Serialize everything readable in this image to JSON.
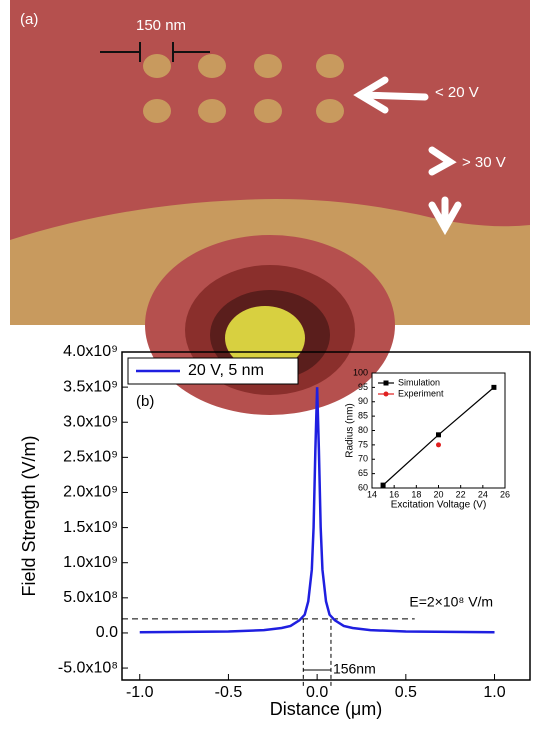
{
  "image_panel": {
    "label": "(a)",
    "annotations": [
      "150 nm",
      "< 20 V",
      "> 30 V"
    ]
  },
  "chart_data": [
    {
      "type": "line",
      "panel_label": "(b)",
      "xlabel": "Distance (μm)",
      "ylabel": "Field Strength (V/m)",
      "x": [
        -1.0,
        -0.5,
        -0.3,
        -0.2,
        -0.15,
        -0.1,
        -0.07,
        -0.05,
        -0.03,
        -0.02,
        -0.01,
        0,
        0.01,
        0.02,
        0.03,
        0.05,
        0.07,
        0.1,
        0.15,
        0.2,
        0.3,
        0.5,
        1.0
      ],
      "series": [
        {
          "name": "20 V, 5 nm",
          "color": "#1f1fe0",
          "values": [
            10000000,
            20000000,
            40000000,
            70000000,
            100000000,
            180000000,
            260000000,
            450000000,
            900000000,
            1500000000,
            2600000000,
            3500000000,
            2600000000,
            1500000000,
            900000000,
            450000000,
            260000000,
            180000000,
            100000000,
            70000000,
            40000000,
            20000000,
            10000000
          ]
        }
      ],
      "xlim": [
        -1.1,
        1.2
      ],
      "ylim": [
        -670000000,
        4000000000
      ],
      "xticks": [
        -1.0,
        -0.5,
        0.0,
        0.5,
        1.0
      ],
      "xtick_labels": [
        "-1.0",
        "-0.5",
        "0.0",
        "0.5",
        "1.0"
      ],
      "yticks": [
        {
          "value": -500000000,
          "label": "-5.0x10⁸"
        },
        {
          "value": 0,
          "label": "0.0"
        },
        {
          "value": 500000000,
          "label": "5.0x10⁸"
        },
        {
          "value": 1000000000,
          "label": "1.0x10⁹"
        },
        {
          "value": 1500000000,
          "label": "1.5x10⁹"
        },
        {
          "value": 2000000000,
          "label": "2.0x10⁹"
        },
        {
          "value": 2500000000,
          "label": "2.5x10⁹"
        },
        {
          "value": 3000000000,
          "label": "3.0x10⁹"
        },
        {
          "value": 3500000000,
          "label": "3.5x10⁹"
        },
        {
          "value": 4000000000,
          "label": "4.0x10⁹"
        }
      ],
      "threshold": {
        "value": 200000000,
        "label": "E=2×10⁸ V/m"
      },
      "width_marks": {
        "x": [
          -0.078,
          0.078
        ],
        "label": "156nm"
      },
      "legend": "upper left"
    },
    {
      "type": "line",
      "xlabel": "Excitation Voltage (V)",
      "ylabel": "Radius (nm)",
      "x": [
        15,
        20,
        25
      ],
      "series": [
        {
          "name": "Simulation",
          "color": "#000000",
          "values": [
            61,
            78.5,
            95
          ]
        },
        {
          "name": "Experiment",
          "color": "#e02020",
          "values": [
            null,
            75,
            null
          ]
        }
      ],
      "xlim": [
        14,
        26
      ],
      "ylim": [
        60,
        100
      ],
      "xticks": [
        14,
        16,
        18,
        20,
        22,
        24,
        26
      ],
      "yticks": [
        60,
        65,
        70,
        75,
        80,
        85,
        90,
        95,
        100
      ],
      "legend": "upper left"
    }
  ]
}
